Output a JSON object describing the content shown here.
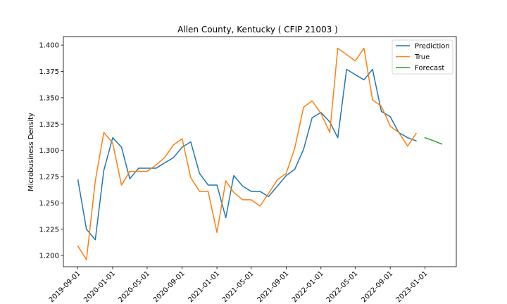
{
  "chart_data": {
    "type": "line",
    "title": "Allen County, Kentucky ( CFIP 21003 )",
    "xlabel": "",
    "ylabel": "Microbusiness Density",
    "ylim": [
      1.1894,
      1.4081
    ],
    "yticks": [
      1.2,
      1.225,
      1.25,
      1.275,
      1.3,
      1.325,
      1.35,
      1.375,
      1.4
    ],
    "ytick_labels": [
      "1.200",
      "1.225",
      "1.250",
      "1.275",
      "1.300",
      "1.325",
      "1.350",
      "1.375",
      "1.400"
    ],
    "xlim": [
      "2019-07-12",
      "2023-04-21"
    ],
    "xticks": [
      "2019-09-01",
      "2020-01-01",
      "2020-05-01",
      "2020-09-01",
      "2021-01-01",
      "2021-05-01",
      "2021-09-01",
      "2022-01-01",
      "2022-05-01",
      "2022-09-01",
      "2023-01-01"
    ],
    "grid": false,
    "legend_position": "top-right",
    "series": [
      {
        "name": "Prediction",
        "color": "#1f77b4",
        "x": [
          "2019-09-01",
          "2019-10-01",
          "2019-11-01",
          "2019-12-01",
          "2020-01-01",
          "2020-02-01",
          "2020-03-01",
          "2020-04-01",
          "2020-05-01",
          "2020-06-01",
          "2020-07-01",
          "2020-08-01",
          "2020-09-01",
          "2020-10-01",
          "2020-11-01",
          "2020-12-01",
          "2021-01-01",
          "2021-02-01",
          "2021-03-01",
          "2021-04-01",
          "2021-05-01",
          "2021-06-01",
          "2021-07-01",
          "2021-08-01",
          "2021-09-01",
          "2021-10-01",
          "2021-11-01",
          "2021-12-01",
          "2022-01-01",
          "2022-02-01",
          "2022-03-01",
          "2022-04-01",
          "2022-05-01",
          "2022-06-01",
          "2022-07-01",
          "2022-08-01",
          "2022-09-01",
          "2022-10-01",
          "2022-11-01",
          "2022-12-01"
        ],
        "values": [
          1.272,
          1.225,
          1.215,
          1.281,
          1.312,
          1.303,
          1.273,
          1.283,
          1.283,
          1.283,
          1.288,
          1.293,
          1.303,
          1.308,
          1.278,
          1.267,
          1.267,
          1.236,
          1.276,
          1.266,
          1.261,
          1.261,
          1.256,
          1.266,
          1.276,
          1.282,
          1.301,
          1.331,
          1.336,
          1.327,
          1.312,
          1.377,
          1.372,
          1.367,
          1.377,
          1.337,
          1.332,
          1.317,
          1.312,
          1.309
        ]
      },
      {
        "name": "True",
        "color": "#ff7f0e",
        "x": [
          "2019-09-01",
          "2019-10-01",
          "2019-11-01",
          "2019-12-01",
          "2020-01-01",
          "2020-02-01",
          "2020-03-01",
          "2020-04-01",
          "2020-05-01",
          "2020-06-01",
          "2020-07-01",
          "2020-08-01",
          "2020-09-01",
          "2020-10-01",
          "2020-11-01",
          "2020-12-01",
          "2021-01-01",
          "2021-02-01",
          "2021-03-01",
          "2021-04-01",
          "2021-05-01",
          "2021-06-01",
          "2021-07-01",
          "2021-08-01",
          "2021-09-01",
          "2021-10-01",
          "2021-11-01",
          "2021-12-01",
          "2022-01-01",
          "2022-02-01",
          "2022-03-01",
          "2022-04-01",
          "2022-05-01",
          "2022-06-01",
          "2022-07-01",
          "2022-08-01",
          "2022-09-01",
          "2022-10-01",
          "2022-11-01",
          "2022-12-01"
        ],
        "values": [
          1.209,
          1.196,
          1.271,
          1.317,
          1.307,
          1.267,
          1.28,
          1.28,
          1.28,
          1.286,
          1.293,
          1.305,
          1.311,
          1.274,
          1.261,
          1.261,
          1.222,
          1.271,
          1.26,
          1.253,
          1.253,
          1.247,
          1.259,
          1.272,
          1.278,
          1.302,
          1.341,
          1.347,
          1.335,
          1.317,
          1.397,
          1.391,
          1.385,
          1.397,
          1.348,
          1.342,
          1.323,
          1.317,
          1.304,
          1.316
        ]
      },
      {
        "name": "Forecast",
        "color": "#2ca02c",
        "x": [
          "2023-01-01",
          "2023-02-01",
          "2023-03-01"
        ],
        "values": [
          1.312,
          1.309,
          1.306
        ]
      }
    ]
  }
}
